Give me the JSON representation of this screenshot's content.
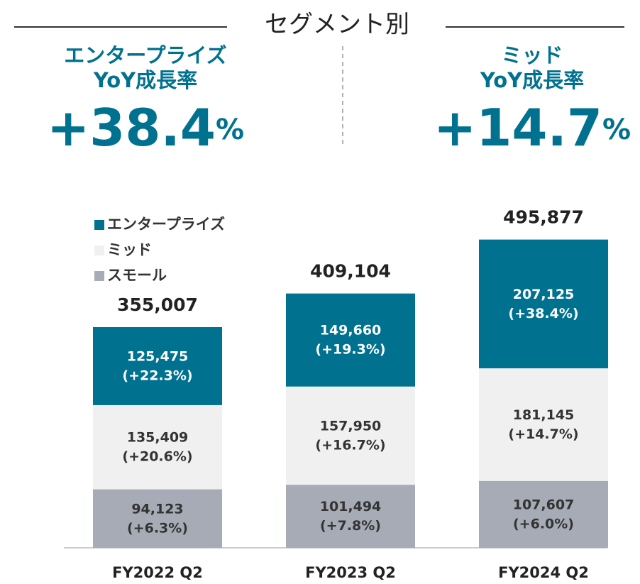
{
  "header": {
    "title": "セグメント別"
  },
  "highlights": [
    {
      "label": [
        "エンタープライズ",
        "YoY成長率"
      ],
      "value": "+38.4",
      "unit": "%"
    },
    {
      "label": [
        "ミッド",
        "YoY成長率"
      ],
      "value": "+14.7",
      "unit": "%"
    }
  ],
  "chart_data": {
    "type": "stacked_bar",
    "categories": [
      "FY2022 Q2",
      "FY2023 Q2",
      "FY2024 Q2"
    ],
    "series": [
      {
        "name": "スモール",
        "color": "#a6abb5",
        "values": [
          94123,
          101494,
          107607
        ],
        "value_labels": [
          "94,123",
          "101,494",
          "107,607"
        ],
        "growth_labels": [
          "(+6.3%)",
          "(+7.8%)",
          "(+6.0%)"
        ]
      },
      {
        "name": "ミッド",
        "color": "#f0f0f0",
        "values": [
          135409,
          157950,
          181145
        ],
        "value_labels": [
          "135,409",
          "157,950",
          "181,145"
        ],
        "growth_labels": [
          "(+20.6%)",
          "(+16.7%)",
          "(+14.7%)"
        ]
      },
      {
        "name": "エンタープライズ",
        "color": "#00718f",
        "values": [
          125475,
          149660,
          207125
        ],
        "value_labels": [
          "125,475",
          "149,660",
          "207,125"
        ],
        "growth_labels": [
          "(+22.3%)",
          "(+19.3%)",
          "(+38.4%)"
        ]
      }
    ],
    "totals": [
      355007,
      409104,
      495877
    ],
    "total_labels": [
      "355,007",
      "409,104",
      "495,877"
    ],
    "ylim": [
      0,
      500000
    ],
    "legend": "top-left"
  }
}
